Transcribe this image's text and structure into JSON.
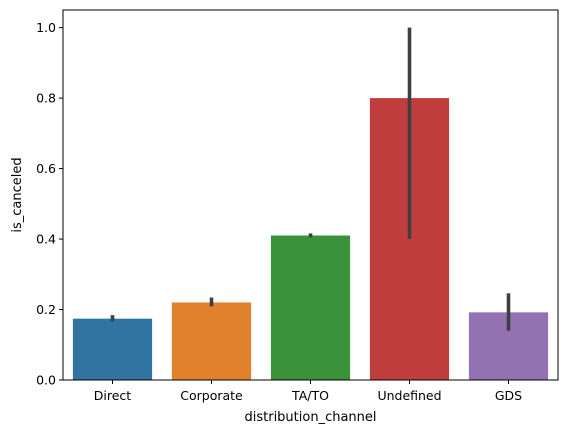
{
  "chart_data": {
    "type": "bar",
    "xlabel": "distribution_channel",
    "ylabel": "is_canceled",
    "categories": [
      "Direct",
      "Corporate",
      "TA/TO",
      "Undefined",
      "GDS"
    ],
    "values": [
      0.174,
      0.22,
      0.41,
      0.8,
      0.192
    ],
    "error_low": [
      0.166,
      0.209,
      0.405,
      0.4,
      0.14
    ],
    "error_high": [
      0.184,
      0.234,
      0.416,
      1.0,
      0.246
    ],
    "colors": [
      "#3274a1",
      "#e1812c",
      "#3a923a",
      "#c03d3e",
      "#9372b2"
    ],
    "ylim": [
      0,
      1.05
    ],
    "yticks": [
      0.0,
      0.2,
      0.4,
      0.6,
      0.8,
      1.0
    ],
    "ytick_labels": [
      "0.0",
      "0.2",
      "0.4",
      "0.6",
      "0.8",
      "1.0"
    ],
    "grid": false,
    "legend": "none"
  }
}
